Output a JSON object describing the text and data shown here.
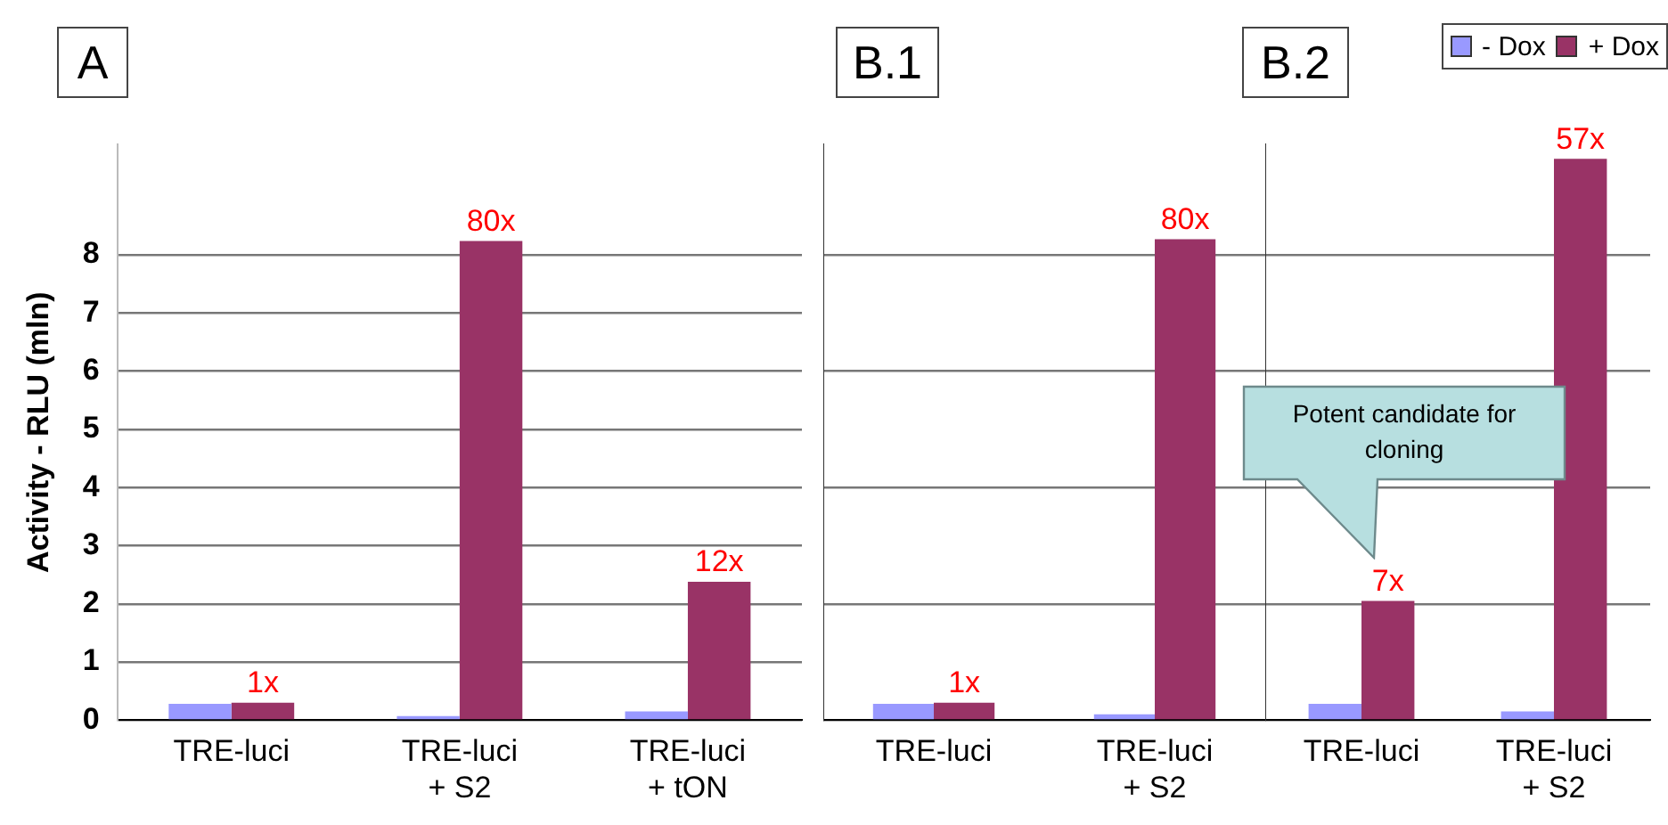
{
  "chart_data": [
    {
      "type": "bar",
      "title": "A",
      "ylabel": "Activity - RLU (mln)",
      "categories": [
        "TRE-luci",
        "TRE-luci + S2",
        "TRE-luci + tON"
      ],
      "series": [
        {
          "color": "#9999ff",
          "values": [
            0.28,
            0.07,
            0.15
          ]
        },
        {
          "color": "#993366",
          "values": [
            0.3,
            8.24,
            2.38
          ]
        }
      ],
      "ylim": [
        0,
        9.9
      ],
      "yticks": [
        0,
        1,
        2,
        3,
        4,
        5,
        6,
        7,
        8
      ],
      "grid": "y",
      "legend": false,
      "annotations": [
        {
          "text": "1x",
          "x": "TRE-luci",
          "y": 0.3
        },
        {
          "text": "80x",
          "x": "TRE-luci + S2",
          "y": 8.24
        },
        {
          "text": "12x",
          "x": "TRE-luci + tON",
          "y": 2.38
        }
      ]
    },
    {
      "type": "bar",
      "title": "B.1",
      "categories": [
        "TRE-luci",
        "TRE-luci + S2"
      ],
      "series": [
        {
          "color": "#9999ff",
          "values": [
            0.28,
            0.1
          ]
        },
        {
          "color": "#993366",
          "values": [
            0.3,
            8.27
          ]
        }
      ],
      "ylim": [
        0,
        9.9
      ],
      "yticks": [
        0,
        2,
        4,
        6,
        8
      ],
      "grid": "y",
      "tick_labels": "x",
      "legend": false,
      "annotations": [
        {
          "text": "1x",
          "x": "TRE-luci",
          "y": 0.3
        },
        {
          "text": "80x",
          "x": "TRE-luci + S2",
          "y": 8.27
        }
      ]
    },
    {
      "type": "bar",
      "title": "B.2",
      "categories": [
        "TRE-luci",
        "TRE-luci + S2"
      ],
      "series": [
        {
          "name": "- Dox",
          "color": "#9999ff",
          "values": [
            0.28,
            0.15
          ]
        },
        {
          "name": "+ Dox",
          "color": "#993366",
          "values": [
            2.05,
            9.65
          ]
        }
      ],
      "ylim": [
        0,
        9.9
      ],
      "yticks": [
        0,
        2,
        4,
        6,
        8
      ],
      "grid": "y",
      "tick_labels": "x",
      "legend": "top right",
      "annotations": [
        "Potent candidate for cloning",
        {
          "text": "7x",
          "x": "TRE-luci",
          "y": 2.05
        },
        {
          "text": "57x",
          "x": "TRE-luci + S2",
          "y": 9.65
        }
      ]
    }
  ]
}
